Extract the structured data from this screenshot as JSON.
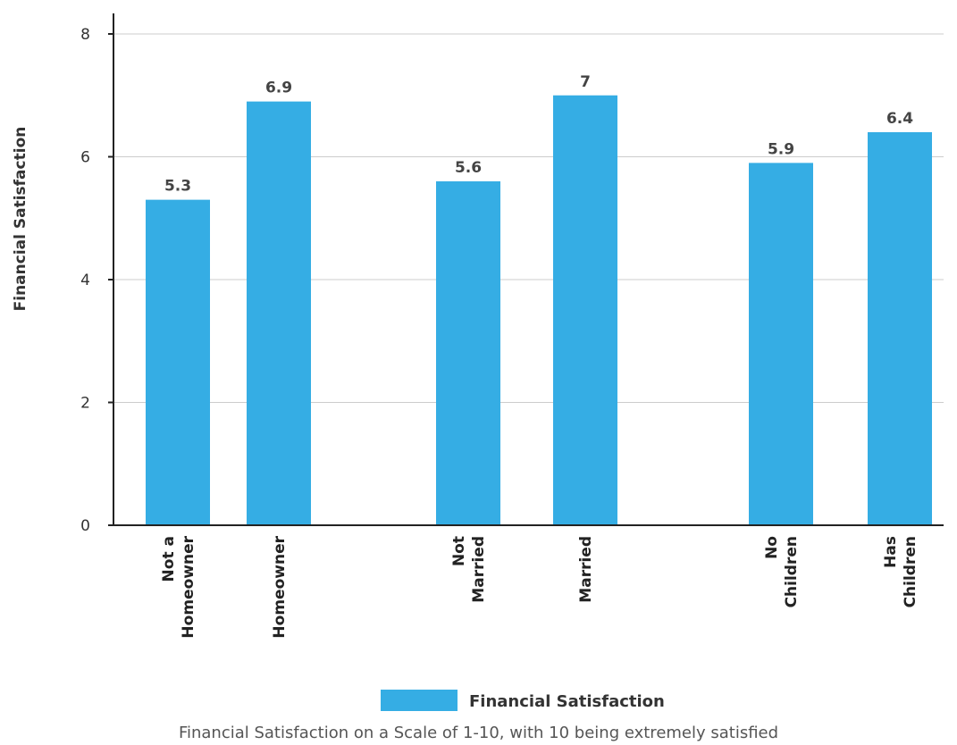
{
  "chart_data": {
    "type": "bar",
    "categories": [
      [
        "Not a",
        "Homeowner"
      ],
      [
        "Homeowner"
      ],
      [
        "Not",
        "Married"
      ],
      [
        "Married"
      ],
      [
        "No",
        "Children"
      ],
      [
        "Has",
        "Children"
      ]
    ],
    "series": [
      {
        "name": "Financial Satisfaction",
        "values": [
          5.3,
          6.9,
          5.6,
          7,
          5.9,
          6.4
        ],
        "color": "#35ade4"
      }
    ],
    "data_labels": [
      "5.3",
      "6.9",
      "5.6",
      "7",
      "5.9",
      "6.4"
    ],
    "ylabel": "Financial Satisfaction",
    "ylim": [
      0,
      8
    ],
    "yticks": [
      "0",
      "2",
      "4",
      "6",
      "8"
    ],
    "grid": true,
    "legend_position": "bottom",
    "caption": "Financial Satisfaction on a Scale of 1-10, with 10 being extremely satisfied"
  }
}
